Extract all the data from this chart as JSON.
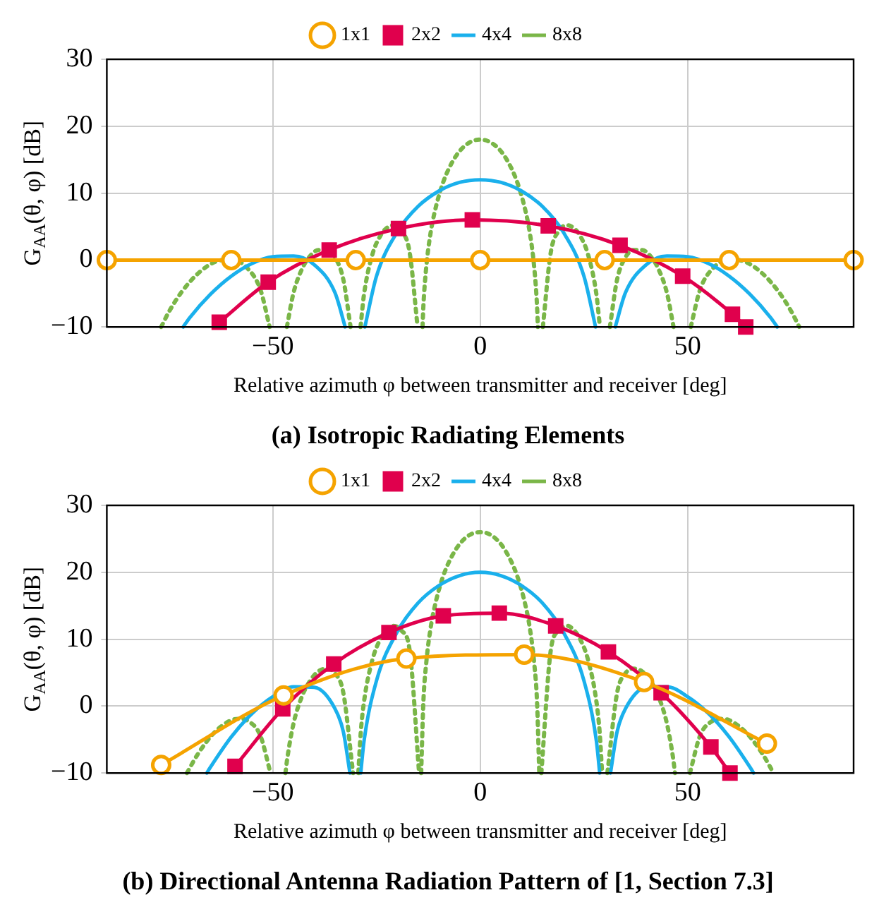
{
  "chart_data": [
    {
      "type": "line",
      "title": "(a) Isotropic Radiating Elements",
      "xlabel": "Relative azimuth φ between transmitter and receiver [deg]",
      "ylabel": "G$_{AA}$(θ, φ) [dB]",
      "xlim": [
        -90,
        90
      ],
      "xticks": [
        -50,
        0,
        50
      ],
      "ylim": [
        -10,
        30
      ],
      "yticks": [
        -10,
        0,
        10,
        20,
        30
      ],
      "grid": true,
      "legend": "top",
      "series": [
        {
          "name": "1x1",
          "color": "#f5a300",
          "marker": "circle",
          "x": [
            -90,
            -60,
            -30,
            0,
            30,
            60,
            90
          ],
          "values": [
            0,
            0,
            0,
            0,
            0,
            0,
            0
          ]
        },
        {
          "name": "2x2",
          "color": "#e0004d",
          "marker": "square",
          "x": [
            -62.9,
            -51.1,
            -36.4,
            -19.7,
            -1.9,
            16.4,
            33.7,
            48.8,
            60.8,
            64
          ],
          "values": [
            -9.3,
            -3.3,
            1.5,
            4.7,
            6.0,
            5.1,
            2.2,
            -2.4,
            -8.1,
            -10
          ]
        },
        {
          "name": "4x4",
          "color": "#1ab0ec",
          "x": [
            -71.6,
            -70,
            -65,
            -60,
            -55,
            -50,
            -45,
            -40,
            -35,
            -32.55,
            -30,
            -27.8,
            -25,
            -20,
            -15,
            -10,
            -5,
            0,
            5,
            10,
            15,
            20,
            25,
            27.8,
            30,
            32.55,
            35,
            40,
            45,
            50,
            55,
            60,
            65,
            70,
            71.6
          ],
          "values": [
            -10,
            -8.6,
            -5.1,
            -2.4,
            -0.5,
            0.5,
            0.6,
            -0.7,
            -4.9,
            -10,
            null,
            -10,
            -2.4,
            4.2,
            8.0,
            10.3,
            11.6,
            12,
            11.6,
            10.3,
            8.0,
            4.2,
            -2.4,
            -10,
            null,
            -10,
            -4.9,
            -0.7,
            0.6,
            0.5,
            -0.5,
            -2.4,
            -5.1,
            -8.6,
            -10
          ]
        },
        {
          "name": "8x8",
          "color": "#7ab648",
          "line_style": "dotted",
          "x": [
            -76.9,
            -75,
            -72,
            -68,
            -64,
            -60,
            -56,
            -53,
            -50.75,
            -48.6,
            -46.6,
            -45,
            -43,
            -41,
            -39,
            -37,
            -35,
            -33,
            -31.25,
            -30,
            -28.85,
            -28,
            -26,
            -24,
            -22.5,
            -21,
            -19,
            -17,
            -15.1,
            -14.5,
            -13.9,
            -13.7,
            -13,
            -12,
            -11,
            -9,
            -6,
            -3,
            0,
            3,
            6,
            9,
            11,
            12,
            13,
            13.7,
            13.9,
            14.5,
            15.1,
            17,
            19,
            21,
            22.5,
            24,
            26,
            28,
            28.85,
            30,
            31.25,
            33,
            35,
            37,
            39,
            41,
            43,
            45,
            46.6,
            48.6,
            50.75,
            53,
            56,
            60,
            64,
            68,
            72,
            75,
            76.9
          ],
          "values": [
            -10,
            -7.7,
            -4.8,
            -2.0,
            -0.3,
            0.1,
            -1.3,
            -4.4,
            -10,
            null,
            -10,
            -4.9,
            -1.4,
            0.6,
            1.5,
            1.5,
            0.4,
            -2.9,
            -10,
            null,
            -10,
            -5.1,
            0.8,
            3.7,
            4.8,
            5.2,
            4.4,
            1.1,
            -10,
            null,
            -10,
            -6.9,
            -1.0,
            3.9,
            7.1,
            11.5,
            15.4,
            17.4,
            18,
            17.4,
            15.4,
            11.5,
            7.1,
            3.9,
            -1.0,
            -6.9,
            -10,
            null,
            -10,
            1.1,
            4.4,
            5.2,
            4.8,
            3.7,
            0.8,
            -5.1,
            -10,
            null,
            -10,
            -2.9,
            0.4,
            1.5,
            1.5,
            0.6,
            -1.4,
            -4.9,
            -10,
            null,
            -10,
            -4.4,
            -1.3,
            0.1,
            -0.3,
            -2.0,
            -4.8,
            -7.7,
            -10
          ]
        }
      ]
    },
    {
      "type": "line",
      "title": "(b) Directional Antenna Radiation Pattern of [1, Section 7.3]",
      "xlabel": "Relative azimuth φ between transmitter and receiver [deg]",
      "ylabel": "G$_{AA}$(θ, φ) [dB]",
      "xlim": [
        -90,
        90
      ],
      "xticks": [
        -50,
        0,
        50
      ],
      "ylim": [
        -10,
        30
      ],
      "yticks": [
        -10,
        0,
        10,
        20,
        30
      ],
      "grid": true,
      "legend": "top",
      "series": [
        {
          "name": "1x1",
          "color": "#f5a300",
          "marker": "circle",
          "x": [
            -76.9,
            -47.4,
            -17.8,
            10.6,
            39.5,
            69.1
          ],
          "values": [
            -8.8,
            1.6,
            7.1,
            7.7,
            3.6,
            -5.6
          ]
        },
        {
          "name": "2x2",
          "color": "#e0004d",
          "marker": "square",
          "x": [
            -59.1,
            -47.6,
            -35.3,
            -22.0,
            -8.9,
            4.6,
            18.2,
            30.9,
            43.6,
            55.6,
            60.2
          ],
          "values": [
            -9.0,
            -0.4,
            6.3,
            11.0,
            13.5,
            13.9,
            12.0,
            8.1,
            2.0,
            -6.1,
            -10
          ]
        },
        {
          "name": "4x4",
          "color": "#1ab0ec",
          "x": [
            -65.9,
            -65,
            -60,
            -55,
            -50,
            -45,
            -40,
            -35,
            -33,
            -31.4,
            -30,
            -28.8,
            -28,
            -25,
            -20,
            -15,
            -10,
            -5,
            0,
            5,
            10,
            15,
            20,
            25,
            28,
            28.8,
            30,
            31.4,
            33,
            35,
            40,
            45,
            50,
            55,
            60,
            65,
            65.9
          ],
          "values": [
            -10,
            -9.1,
            -4.6,
            -1.1,
            1.4,
            2.9,
            2.8,
            -0.4,
            -3.8,
            -10,
            null,
            -10,
            -5.2,
            3.8,
            11.1,
            15.4,
            18.0,
            19.5,
            20,
            19.5,
            18.0,
            15.4,
            11.1,
            3.8,
            -5.2,
            -10,
            null,
            -10,
            -3.8,
            -0.4,
            2.8,
            2.9,
            1.4,
            -1.1,
            -4.6,
            -9.1,
            -10
          ]
        },
        {
          "name": "8x8",
          "color": "#7ab648",
          "line_style": "dotted",
          "x": [
            -70.7,
            -68,
            -64,
            -60,
            -58,
            -56,
            -53,
            -50.55,
            -48.6,
            -46.95,
            -46.5,
            -45,
            -43,
            -41,
            -39,
            -37,
            -35,
            -33,
            -30.65,
            -30,
            -29.38,
            -28.8,
            -28,
            -26,
            -24,
            -22.5,
            -21,
            -19,
            -17,
            -14.73,
            -14.5,
            -14.23,
            -13.7,
            -13,
            -12,
            -11,
            -9,
            -6,
            -3,
            0,
            3,
            6,
            9,
            11,
            12,
            13,
            13.7,
            14.23,
            14.5,
            14.73,
            17,
            19,
            21,
            22.5,
            24,
            26,
            28,
            28.8,
            29.38,
            30,
            30.65,
            33,
            35,
            37,
            39,
            41,
            43,
            45,
            46.5,
            46.95,
            48.6,
            50.55,
            53,
            56,
            58,
            60,
            64,
            68,
            70.7
          ],
          "values": [
            -10,
            -7.1,
            -3.9,
            -2.1,
            -1.9,
            -2.2,
            -4.4,
            -10,
            null,
            -10,
            -7.8,
            -2.6,
            1.4,
            3.8,
            5.2,
            5.6,
            4.9,
            2.0,
            -10,
            null,
            -10,
            -4.0,
            0.7,
            6.9,
            10.1,
            11.4,
            12.0,
            11.3,
            8.3,
            -10,
            null,
            -10,
            0.6,
            6.5,
            11.5,
            14.8,
            19.3,
            23.3,
            25.4,
            26,
            25.4,
            23.3,
            19.3,
            14.8,
            11.5,
            6.5,
            0.6,
            -10,
            null,
            -10,
            8.3,
            11.3,
            12.0,
            11.4,
            10.1,
            6.9,
            0.7,
            -4.0,
            -10,
            null,
            -10,
            2.0,
            4.9,
            5.6,
            5.2,
            3.8,
            1.4,
            -2.6,
            -7.8,
            -10,
            null,
            -10,
            -4.4,
            -2.2,
            -1.9,
            -2.1,
            -3.9,
            -7.1,
            -10
          ]
        }
      ]
    }
  ]
}
